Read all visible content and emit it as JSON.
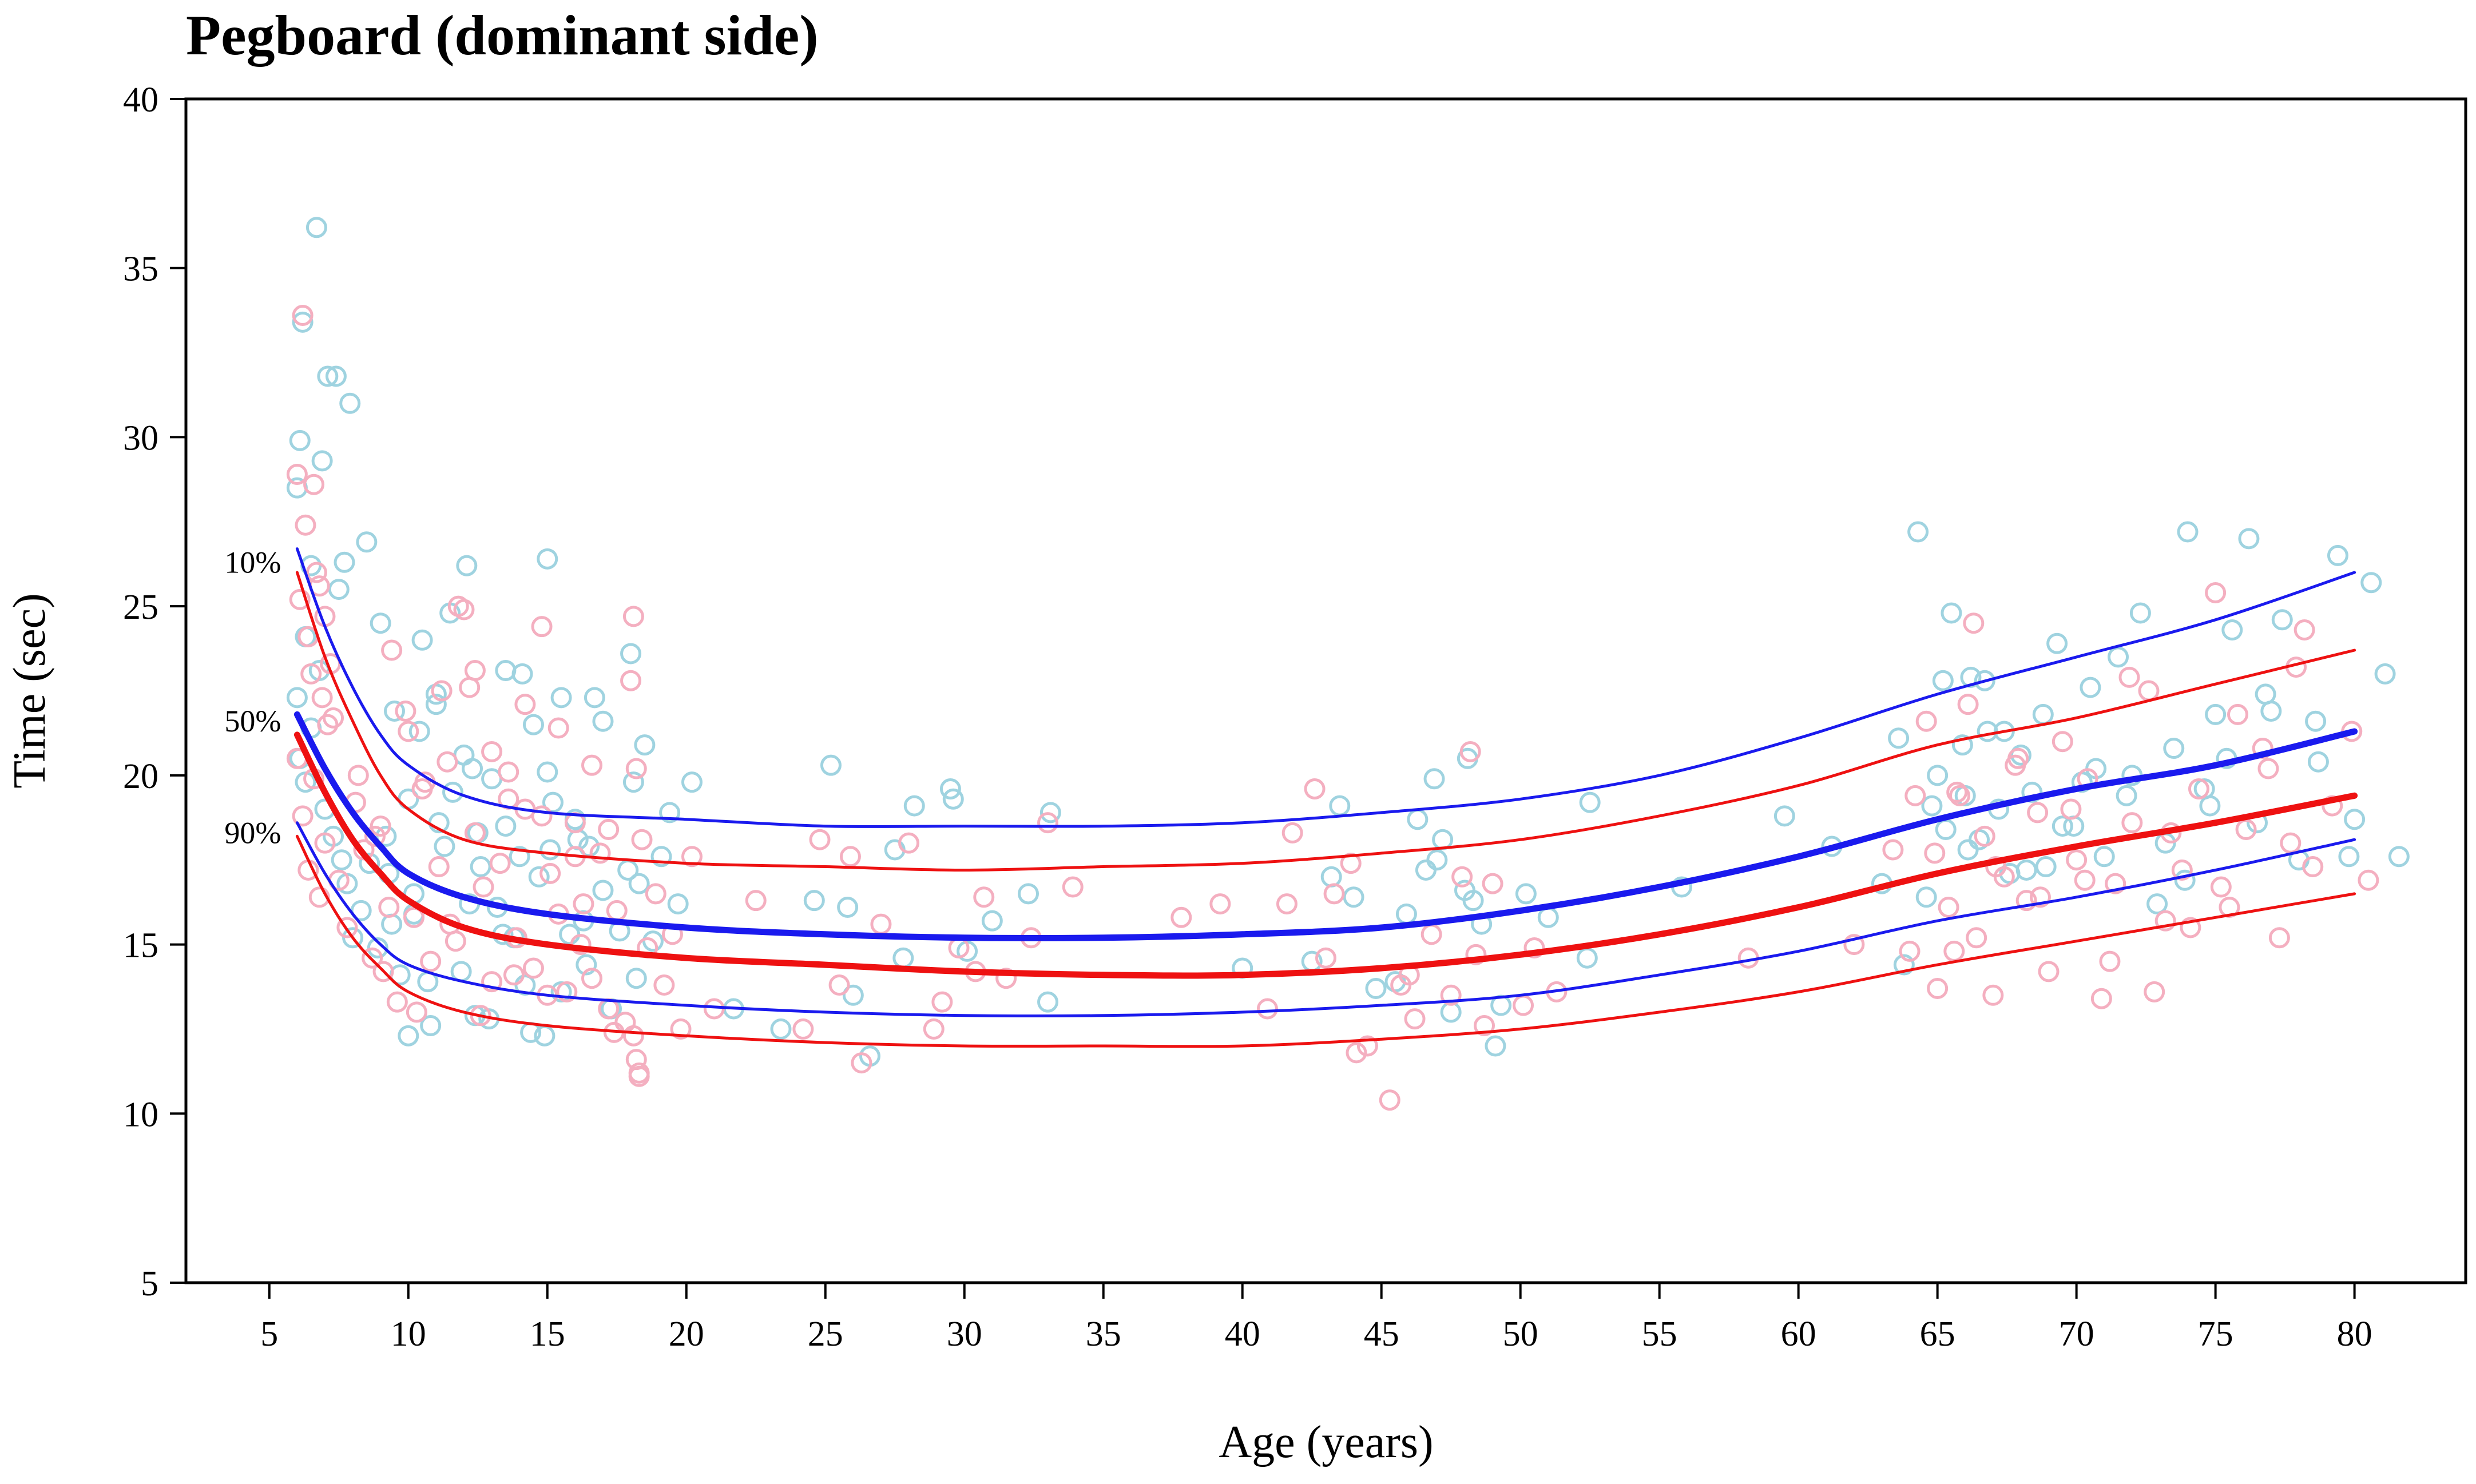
{
  "chart_data": {
    "type": "scatter",
    "title": "Pegboard (dominant side)",
    "xlabel": "Age (years)",
    "ylabel": "Time (sec)",
    "xlim": [
      2,
      84
    ],
    "ylim": [
      5,
      40
    ],
    "x_ticks": [
      5,
      10,
      15,
      20,
      25,
      30,
      35,
      40,
      45,
      50,
      55,
      60,
      65,
      70,
      75,
      80
    ],
    "y_ticks": [
      5,
      10,
      15,
      20,
      25,
      30,
      35,
      40
    ],
    "grid": false,
    "percentile_labels": [
      {
        "label": "10%",
        "value": 26.3
      },
      {
        "label": "50%",
        "value": 21.6
      },
      {
        "label": "90%",
        "value": 18.3
      }
    ],
    "series": [
      {
        "name": "blue-p10",
        "kind": "curve",
        "role": "percentile",
        "color": "#1a1aee",
        "x": [
          6,
          7,
          8,
          9,
          10,
          12,
          15,
          20,
          25,
          30,
          35,
          40,
          45,
          50,
          55,
          60,
          65,
          70,
          75,
          80
        ],
        "y": [
          26.7,
          24.4,
          22.6,
          21.2,
          20.3,
          19.4,
          18.9,
          18.7,
          18.5,
          18.5,
          18.5,
          18.6,
          18.9,
          19.3,
          20.0,
          21.1,
          22.4,
          23.5,
          24.6,
          26.0
        ]
      },
      {
        "name": "red-p10",
        "kind": "curve",
        "role": "percentile",
        "color": "#ee1111",
        "x": [
          6,
          7,
          8,
          9,
          10,
          12,
          15,
          20,
          25,
          30,
          35,
          40,
          45,
          50,
          55,
          60,
          65,
          70,
          75,
          80
        ],
        "y": [
          26.0,
          23.5,
          21.6,
          20.0,
          19.0,
          18.1,
          17.7,
          17.4,
          17.3,
          17.2,
          17.3,
          17.4,
          17.7,
          18.1,
          18.8,
          19.7,
          20.9,
          21.7,
          22.7,
          23.7
        ]
      },
      {
        "name": "blue-p50",
        "kind": "curve",
        "role": "median",
        "color": "#1a1aee",
        "x": [
          6,
          7,
          8,
          9,
          10,
          12,
          15,
          20,
          25,
          30,
          35,
          40,
          45,
          50,
          55,
          60,
          65,
          70,
          75,
          80
        ],
        "y": [
          21.8,
          20.2,
          18.9,
          17.9,
          17.1,
          16.4,
          15.9,
          15.5,
          15.3,
          15.2,
          15.2,
          15.3,
          15.5,
          16.0,
          16.7,
          17.6,
          18.7,
          19.6,
          20.3,
          21.3
        ]
      },
      {
        "name": "red-p50",
        "kind": "curve",
        "role": "median",
        "color": "#ee1111",
        "x": [
          6,
          7,
          8,
          9,
          10,
          12,
          15,
          20,
          25,
          30,
          35,
          40,
          45,
          50,
          55,
          60,
          65,
          70,
          75,
          80
        ],
        "y": [
          21.2,
          19.5,
          18.1,
          17.1,
          16.3,
          15.5,
          15.0,
          14.6,
          14.4,
          14.2,
          14.1,
          14.1,
          14.3,
          14.7,
          15.3,
          16.1,
          17.1,
          17.9,
          18.6,
          19.4
        ]
      },
      {
        "name": "blue-p90",
        "kind": "curve",
        "role": "percentile",
        "color": "#1a1aee",
        "x": [
          6,
          7,
          8,
          9,
          10,
          12,
          15,
          20,
          25,
          30,
          35,
          40,
          45,
          50,
          55,
          60,
          65,
          70,
          75,
          80
        ],
        "y": [
          18.6,
          17.1,
          15.9,
          15.0,
          14.4,
          13.9,
          13.5,
          13.2,
          13.0,
          12.9,
          12.9,
          13.0,
          13.2,
          13.5,
          14.1,
          14.8,
          15.7,
          16.4,
          17.2,
          18.1
        ]
      },
      {
        "name": "red-p90",
        "kind": "curve",
        "role": "percentile",
        "color": "#ee1111",
        "x": [
          6,
          7,
          8,
          9,
          10,
          12,
          15,
          20,
          25,
          30,
          35,
          40,
          45,
          50,
          55,
          60,
          65,
          70,
          75,
          80
        ],
        "y": [
          18.2,
          16.5,
          15.2,
          14.3,
          13.6,
          13.0,
          12.6,
          12.3,
          12.1,
          12.0,
          12.0,
          12.0,
          12.2,
          12.5,
          13.0,
          13.6,
          14.4,
          15.1,
          15.8,
          16.5
        ]
      },
      {
        "name": "blue-points",
        "kind": "points",
        "color": "#9fd3e0",
        "x": [
          6.0,
          6.1,
          6.2,
          6.3,
          6.5,
          6.7,
          6.9,
          7.1,
          7.4,
          7.5,
          7.7,
          7.9,
          6.0,
          6.1,
          6.3,
          6.5,
          6.8,
          7.0,
          7.3,
          7.6,
          7.8,
          8.0,
          8.3,
          8.6,
          8.9,
          9.2,
          9.4,
          9.7,
          10.0,
          10.2,
          10.4,
          10.7,
          11.0,
          11.3,
          11.6,
          11.9,
          12.1,
          12.3,
          12.6,
          12.9,
          13.2,
          13.5,
          13.8,
          14.1,
          14.4,
          14.7,
          15.0,
          15.2,
          15.5,
          15.8,
          16.1,
          16.4,
          16.7,
          17.0,
          17.3,
          17.6,
          17.9,
          18.0,
          18.1,
          18.2,
          18.3,
          18.5,
          18.8,
          19.1,
          19.4,
          19.7,
          8.5,
          9.0,
          9.5,
          10.0,
          10.5,
          11.0,
          11.5,
          12.0,
          12.5,
          13.0,
          13.5,
          14.0,
          14.5,
          15.0,
          15.5,
          16.0,
          16.5,
          17.0,
          9.3,
          10.2,
          11.1,
          12.2,
          13.4,
          14.2,
          15.1,
          16.3,
          10.8,
          12.4,
          14.9,
          20.2,
          21.7,
          23.4,
          24.6,
          25.2,
          26.0,
          26.6,
          27.5,
          28.2,
          29.5,
          30.1,
          31.0,
          32.3,
          33.1,
          29.6,
          25.8,
          27.8,
          33.0,
          40.0,
          42.5,
          43.5,
          43.2,
          44.8,
          45.5,
          46.3,
          46.9,
          47.5,
          48.1,
          48.6,
          49.1,
          50.2,
          51.0,
          52.4,
          46.6,
          47.2,
          48.3,
          49.3,
          47.0,
          45.9,
          44.0,
          48.0,
          52.5,
          55.8,
          59.5,
          61.2,
          63.0,
          63.8,
          64.3,
          64.8,
          65.2,
          65.5,
          65.9,
          66.2,
          66.5,
          66.8,
          67.2,
          67.6,
          68.0,
          68.4,
          68.8,
          69.3,
          69.9,
          70.5,
          71.0,
          71.8,
          72.3,
          72.9,
          73.5,
          74.0,
          74.6,
          75.0,
          75.6,
          76.2,
          76.8,
          77.4,
          78.0,
          78.7,
          79.4,
          80.0,
          80.6,
          81.1,
          81.6,
          63.6,
          65.3,
          66.7,
          68.9,
          70.2,
          71.5,
          73.2,
          75.4,
          78.6,
          65.0,
          66.1,
          67.4,
          69.5,
          72.0,
          74.8,
          77.0,
          79.8,
          64.6,
          66.0,
          68.2,
          70.7,
          73.9,
          76.5
        ],
        "y": [
          28.5,
          29.9,
          33.4,
          24.1,
          26.2,
          36.2,
          29.3,
          31.8,
          31.8,
          25.5,
          26.3,
          31.0,
          22.3,
          20.5,
          19.8,
          21.4,
          23.1,
          19.0,
          18.2,
          17.5,
          16.8,
          15.2,
          16.0,
          17.4,
          14.9,
          18.2,
          15.6,
          14.1,
          12.3,
          16.5,
          21.3,
          13.9,
          22.4,
          17.9,
          19.5,
          14.2,
          26.2,
          20.2,
          17.3,
          12.8,
          16.1,
          18.5,
          15.2,
          23.0,
          12.4,
          17.0,
          26.4,
          19.2,
          13.6,
          15.3,
          18.1,
          14.4,
          22.3,
          16.6,
          13.1,
          15.4,
          17.2,
          23.6,
          19.8,
          14.0,
          16.8,
          20.9,
          15.1,
          17.6,
          18.9,
          16.2,
          26.9,
          24.5,
          21.9,
          19.3,
          24.0,
          22.1,
          24.8,
          20.6,
          18.3,
          19.9,
          23.1,
          17.6,
          21.5,
          20.1,
          22.3,
          18.7,
          17.9,
          21.6,
          17.1,
          15.9,
          18.6,
          16.2,
          15.3,
          13.8,
          17.8,
          15.7,
          12.6,
          12.9,
          12.3,
          19.8,
          13.1,
          12.5,
          16.3,
          20.3,
          13.5,
          11.7,
          17.8,
          19.1,
          19.6,
          14.8,
          15.7,
          16.5,
          18.9,
          19.3,
          16.1,
          14.6,
          13.3,
          14.3,
          14.5,
          19.1,
          17.0,
          13.7,
          13.9,
          18.7,
          19.9,
          13.0,
          20.5,
          15.6,
          12.0,
          16.5,
          15.8,
          14.6,
          17.2,
          18.1,
          16.3,
          13.2,
          17.5,
          15.9,
          16.4,
          16.6,
          19.2,
          16.7,
          18.8,
          17.9,
          16.8,
          14.4,
          27.2,
          19.1,
          22.8,
          24.8,
          20.9,
          22.9,
          18.1,
          21.3,
          19.0,
          17.1,
          20.6,
          19.5,
          21.8,
          23.9,
          18.5,
          22.6,
          17.6,
          19.4,
          24.8,
          16.2,
          20.8,
          27.2,
          19.6,
          21.8,
          24.3,
          27.0,
          22.4,
          24.6,
          17.5,
          20.4,
          26.5,
          18.7,
          25.7,
          23.0,
          17.6,
          21.1,
          18.4,
          22.8,
          17.3,
          19.8,
          23.5,
          18.0,
          20.5,
          21.6,
          20.0,
          17.8,
          21.3,
          18.5,
          20.0,
          19.1,
          21.9,
          17.6,
          16.4,
          19.4,
          17.2,
          20.2,
          16.9,
          18.6
        ]
      },
      {
        "name": "pink-points",
        "kind": "points",
        "color": "#f4afc0",
        "x": [
          6.0,
          6.1,
          6.2,
          6.3,
          6.4,
          6.5,
          6.6,
          6.7,
          6.8,
          6.9,
          7.0,
          7.1,
          7.2,
          6.0,
          6.2,
          6.4,
          6.6,
          6.8,
          7.0,
          7.3,
          7.5,
          7.8,
          8.1,
          8.4,
          8.7,
          9.0,
          9.3,
          9.6,
          9.9,
          10.2,
          10.5,
          10.8,
          11.1,
          11.4,
          11.7,
          12.0,
          12.2,
          12.4,
          12.7,
          13.0,
          13.3,
          13.6,
          13.9,
          14.2,
          14.5,
          14.8,
          15.1,
          15.4,
          15.7,
          16.0,
          16.3,
          16.6,
          16.9,
          17.2,
          17.5,
          17.8,
          18.0,
          18.1,
          18.2,
          18.3,
          18.4,
          18.6,
          18.9,
          19.2,
          19.5,
          19.8,
          20.2,
          8.2,
          8.8,
          9.4,
          10.0,
          10.6,
          11.2,
          11.8,
          12.4,
          13.0,
          13.6,
          14.2,
          14.8,
          15.4,
          16.0,
          16.6,
          17.2,
          18.1,
          18.2,
          18.3,
          9.1,
          10.3,
          11.5,
          12.6,
          13.8,
          15.0,
          16.2,
          17.4,
          21.0,
          22.5,
          24.2,
          24.8,
          25.5,
          26.3,
          27.0,
          28.0,
          28.9,
          29.8,
          30.7,
          31.5,
          32.4,
          33.0,
          33.9,
          29.2,
          30.4,
          25.9,
          37.8,
          39.2,
          40.9,
          41.6,
          43.0,
          43.9,
          44.5,
          45.3,
          46.0,
          46.8,
          47.5,
          48.2,
          48.7,
          49.0,
          50.5,
          51.3,
          44.1,
          45.7,
          47.9,
          48.4,
          46.2,
          43.3,
          41.8,
          42.6,
          50.1,
          58.2,
          62.0,
          63.4,
          64.0,
          64.6,
          65.0,
          65.4,
          65.8,
          66.1,
          66.4,
          66.7,
          67.0,
          67.4,
          67.8,
          68.2,
          68.6,
          69.0,
          69.5,
          70.0,
          70.4,
          70.9,
          71.4,
          72.0,
          72.6,
          73.2,
          73.8,
          74.4,
          75.0,
          75.5,
          76.1,
          76.7,
          77.3,
          77.9,
          78.5,
          79.2,
          79.9,
          80.5,
          64.9,
          66.3,
          67.9,
          70.3,
          71.9,
          73.4,
          75.8,
          78.2,
          64.2,
          65.6,
          67.1,
          69.8,
          72.8,
          75.2,
          77.7,
          65.7,
          68.7,
          71.2,
          74.1,
          76.9
        ],
        "y": [
          28.9,
          25.2,
          33.6,
          27.4,
          24.1,
          23.0,
          28.6,
          26.0,
          25.6,
          22.3,
          24.7,
          21.5,
          23.3,
          20.5,
          18.8,
          17.2,
          19.9,
          16.4,
          18.0,
          21.7,
          16.9,
          15.5,
          19.2,
          17.8,
          14.6,
          18.5,
          16.1,
          13.3,
          21.9,
          15.8,
          19.6,
          14.5,
          17.3,
          20.4,
          15.1,
          24.9,
          22.6,
          18.3,
          16.7,
          13.9,
          17.4,
          20.1,
          15.2,
          19.0,
          14.3,
          24.4,
          17.1,
          15.9,
          13.6,
          18.6,
          16.2,
          14.0,
          17.7,
          13.1,
          16.0,
          12.7,
          22.8,
          24.7,
          20.2,
          11.2,
          18.1,
          14.9,
          16.5,
          13.8,
          15.3,
          12.5,
          17.6,
          20.0,
          18.2,
          23.7,
          21.3,
          19.8,
          22.5,
          25.0,
          23.1,
          20.7,
          19.3,
          22.1,
          18.8,
          21.4,
          17.6,
          20.3,
          18.4,
          12.3,
          11.6,
          11.1,
          14.2,
          13.0,
          15.6,
          12.9,
          14.1,
          13.5,
          15.0,
          12.4,
          13.1,
          16.3,
          12.5,
          18.1,
          13.8,
          11.5,
          15.6,
          18.0,
          12.5,
          14.9,
          16.4,
          14.0,
          15.2,
          18.6,
          16.7,
          13.3,
          14.2,
          17.6,
          15.8,
          16.2,
          13.1,
          16.2,
          14.6,
          17.4,
          12.0,
          10.4,
          14.1,
          15.3,
          13.5,
          20.7,
          12.6,
          16.8,
          14.9,
          13.6,
          11.8,
          13.8,
          17.0,
          14.7,
          12.8,
          16.5,
          18.3,
          19.6,
          13.2,
          14.6,
          15.0,
          17.8,
          14.8,
          21.6,
          13.7,
          16.1,
          19.4,
          22.1,
          15.2,
          18.2,
          13.5,
          17.0,
          20.3,
          16.3,
          18.9,
          14.2,
          21.0,
          17.5,
          19.9,
          13.4,
          16.8,
          18.6,
          22.5,
          15.7,
          17.2,
          19.6,
          25.4,
          16.1,
          18.4,
          20.8,
          15.2,
          23.2,
          17.3,
          19.1,
          21.3,
          16.9,
          17.7,
          24.5,
          20.5,
          16.9,
          22.9,
          18.3,
          21.8,
          24.3,
          19.4,
          14.8,
          17.3,
          19.0,
          13.6,
          16.7,
          18.0,
          19.5,
          16.4,
          14.5,
          15.5,
          20.2
        ],
        "bbox_note": ""
      }
    ]
  }
}
